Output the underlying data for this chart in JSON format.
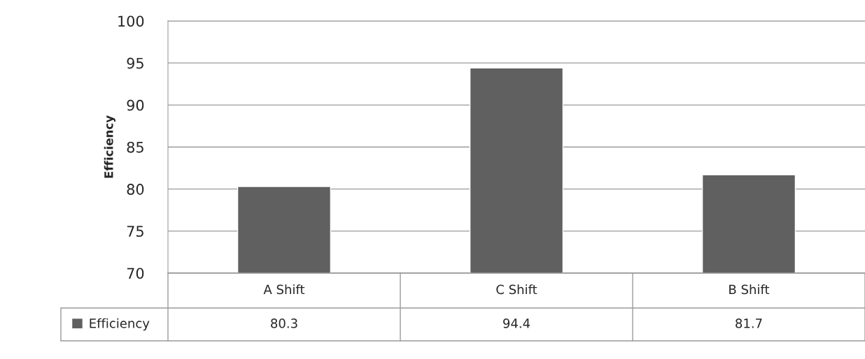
{
  "chart_data": {
    "type": "bar",
    "ylabel": "Efficiency",
    "categories": [
      "A Shift",
      "C Shift",
      "B Shift"
    ],
    "series": [
      {
        "name": "Efficiency",
        "color": "#606060",
        "values": [
          80.3,
          94.4,
          81.7
        ]
      }
    ],
    "ylim": [
      70,
      100
    ],
    "yticks": [
      70,
      75,
      80,
      85,
      90,
      95,
      100
    ],
    "grid": "y",
    "data_labels": true,
    "legend": "bottom left"
  }
}
